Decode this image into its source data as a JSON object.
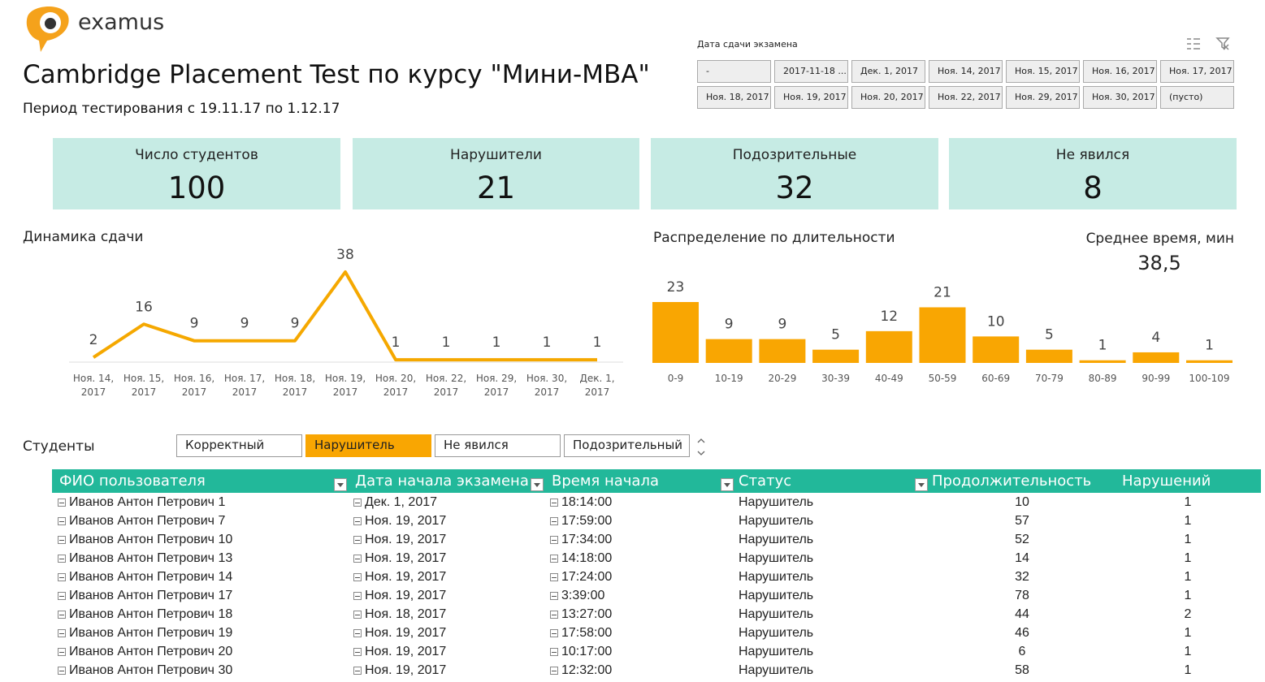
{
  "header": {
    "logo": "examus",
    "title": "Cambridge Placement Test по курсу \"Мини-МВА\"",
    "subtitle": "Период тестирования с 19.11.17 по 1.12.17"
  },
  "date_slicer": {
    "title": "Дата сдачи экзамена",
    "items": [
      "-",
      "2017-11-18 ...",
      "Дек. 1, 2017",
      "Ноя. 14, 2017",
      "Ноя. 15, 2017",
      "Ноя. 16, 2017",
      "Ноя. 17, 2017",
      "Ноя. 18, 2017",
      "Ноя. 19, 2017",
      "Ноя. 20, 2017",
      "Ноя. 22, 2017",
      "Ноя. 29, 2017",
      "Ноя. 30, 2017",
      "(пусто)"
    ]
  },
  "kpis": [
    {
      "label": "Число студентов",
      "value": 100
    },
    {
      "label": "Нарушители",
      "value": 21
    },
    {
      "label": "Подозрительные",
      "value": 32
    },
    {
      "label": "Не явился",
      "value": 8
    }
  ],
  "chart_data": [
    {
      "type": "line",
      "title": "Динамика сдачи",
      "color": "#f5a800",
      "categories": [
        "Ноя. 14, 2017",
        "Ноя. 15, 2017",
        "Ноя. 16, 2017",
        "Ноя. 17, 2017",
        "Ноя. 18, 2017",
        "Ноя. 19, 2017",
        "Ноя. 20, 2017",
        "Ноя. 22, 2017",
        "Ноя. 29, 2017",
        "Ноя. 30, 2017",
        "Дек. 1, 2017"
      ],
      "values": [
        2,
        16,
        9,
        9,
        9,
        38,
        1,
        1,
        1,
        1,
        1
      ]
    },
    {
      "type": "bar",
      "title": "Распределение по длительности",
      "color": "#f9a602",
      "categories": [
        "0-9",
        "10-19",
        "20-29",
        "30-39",
        "40-49",
        "50-59",
        "60-69",
        "70-79",
        "80-89",
        "90-99",
        "100-109"
      ],
      "values": [
        23,
        9,
        9,
        5,
        12,
        21,
        10,
        5,
        1,
        4,
        1
      ]
    }
  ],
  "average_time": {
    "label": "Среднее время, мин",
    "value": "38,5"
  },
  "status_slicer": {
    "title": "Студенты",
    "items": [
      "Корректный",
      "Нарушитель",
      "Не явился",
      "Подозрительный"
    ],
    "selected": "Нарушитель"
  },
  "table": {
    "columns": [
      "ФИО пользователя",
      "Дата начала экзамена",
      "Время начала",
      "Статус",
      "Продолжительность",
      "Нарушений"
    ],
    "rows": [
      [
        "Иванов Антон Петрович 1",
        "Дек. 1, 2017",
        "18:14:00",
        "Нарушитель",
        10,
        1
      ],
      [
        "Иванов Антон Петрович 7",
        "Ноя. 19, 2017",
        "17:59:00",
        "Нарушитель",
        57,
        1
      ],
      [
        "Иванов Антон Петрович 10",
        "Ноя. 19, 2017",
        "17:34:00",
        "Нарушитель",
        52,
        1
      ],
      [
        "Иванов Антон Петрович 13",
        "Ноя. 19, 2017",
        "14:18:00",
        "Нарушитель",
        14,
        1
      ],
      [
        "Иванов Антон Петрович 14",
        "Ноя. 19, 2017",
        "17:24:00",
        "Нарушитель",
        32,
        1
      ],
      [
        "Иванов Антон Петрович 17",
        "Ноя. 19, 2017",
        "3:39:00",
        "Нарушитель",
        78,
        1
      ],
      [
        "Иванов Антон Петрович 18",
        "Ноя. 18, 2017",
        "13:27:00",
        "Нарушитель",
        44,
        2
      ],
      [
        "Иванов Антон Петрович 19",
        "Ноя. 19, 2017",
        "17:58:00",
        "Нарушитель",
        46,
        1
      ],
      [
        "Иванов Антон Петрович 20",
        "Ноя. 19, 2017",
        "10:17:00",
        "Нарушитель",
        6,
        1
      ],
      [
        "Иванов Антон Петрович 30",
        "Ноя. 19, 2017",
        "12:32:00",
        "Нарушитель",
        58,
        1
      ]
    ]
  }
}
